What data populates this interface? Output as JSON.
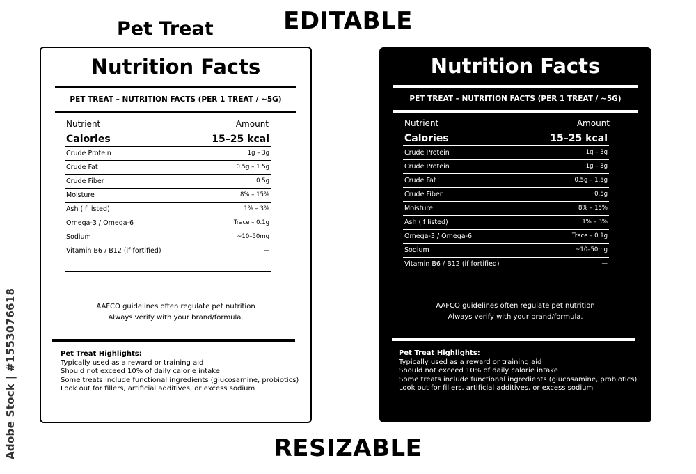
{
  "headings": {
    "editable": "EDITABLE",
    "resizable": "RESIZABLE",
    "pet_treat": "Pet Treat"
  },
  "side_credit": "Adobe Stock | #1553076618",
  "label": {
    "title": "Nutrition Facts",
    "subtitle": "PET TREAT – NUTRITION FACTS (PER 1 TREAT / ~5G)",
    "col_nutrient": "Nutrient",
    "col_amount": "Amount",
    "rows_light": [
      {
        "name": "Calories",
        "value": "15–25 kcal"
      },
      {
        "name": "Crude Protein",
        "value": "1g – 3g"
      },
      {
        "name": "Crude Fat",
        "value": "0.5g – 1.5g"
      },
      {
        "name": "Crude Fiber",
        "value": "0.5g"
      },
      {
        "name": "Moisture",
        "value": "8% – 15%"
      },
      {
        "name": "Ash (if listed)",
        "value": "1% – 3%"
      },
      {
        "name": "Omega-3 / Omega-6",
        "value": "Trace – 0.1g"
      },
      {
        "name": "Sodium",
        "value": "~10–50mg"
      },
      {
        "name": "Vitamin B6 / B12 (if fortified)",
        "value": "—"
      }
    ],
    "rows_dark": [
      {
        "name": "Calories",
        "value": "15–25 kcal"
      },
      {
        "name": "Crude Protein",
        "value": "1g – 3g"
      },
      {
        "name": "Crude Protein",
        "value": "1g – 3g"
      },
      {
        "name": "Crude Fat",
        "value": "0.5g – 1.5g"
      },
      {
        "name": "Crude Fiber",
        "value": "0.5g"
      },
      {
        "name": "Moisture",
        "value": "8% – 15%"
      },
      {
        "name": "Ash (if listed)",
        "value": "1% – 3%"
      },
      {
        "name": "Omega-3 / Omega-6",
        "value": "Trace – 0.1g"
      },
      {
        "name": "Sodium",
        "value": "~10–50mg"
      },
      {
        "name": "Vitamin B6 / B12 (if fortified)",
        "value": "—"
      }
    ],
    "note_line1": "AAFCO guidelines often regulate pet nutrition",
    "note_line2": "Always verify with your brand/formula.",
    "highlights": {
      "title": "Pet Treat Highlights:",
      "items": [
        "Typically used as a reward or training aid",
        "Should not exceed 10% of daily calorie intake",
        "Some treats include functional ingredients (glucosamine, probiotics)",
        "Look out for fillers, artificial additives, or excess sodium"
      ]
    }
  },
  "colors": {
    "light_bg": "#ffffff",
    "dark_bg": "#000000",
    "ink": "#000000"
  }
}
